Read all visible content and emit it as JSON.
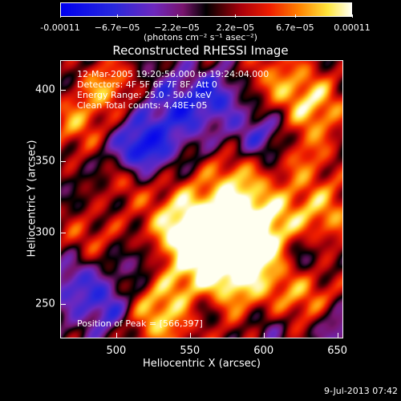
{
  "colorbar": {
    "tick_labels": [
      "-0.00011",
      "−6.7e−05",
      "−2.2e−05",
      "2.2e−05",
      "6.7e−05",
      "0.00011"
    ],
    "tick_values": [
      -0.00011,
      -6.7e-05,
      -2.2e-05,
      2.2e-05,
      6.7e-05,
      0.00011
    ],
    "units": "(photons cm⁻² s⁻¹ asec⁻²)",
    "range": [
      -0.00011,
      0.00011
    ]
  },
  "chart_data": {
    "type": "heatmap",
    "title": "Reconstructed RHESSI Image",
    "xlabel": "Heliocentric X (arcsec)",
    "ylabel": "Heliocentric Y (arcsec)",
    "xlim": [
      462,
      654
    ],
    "ylim": [
      226,
      421
    ],
    "x_ticks": [
      500,
      550,
      600,
      650
    ],
    "y_ticks": [
      250,
      300,
      350,
      400
    ],
    "peak": [
      566,
      397
    ],
    "annotations": {
      "time": "12-Mar-2005 19:20:56.000 to 19:24:04.000",
      "detectors": "Detectors: 4F 5F 6F 7F 8F, Att 0",
      "energy": "Energy Range: 25.0 - 50.0 keV",
      "clean": "Clean    Total counts: 4.48E+05",
      "peak_label": "Position of Peak = [566,397]"
    }
  },
  "timestamp": "9-Jul-2013 07:42"
}
